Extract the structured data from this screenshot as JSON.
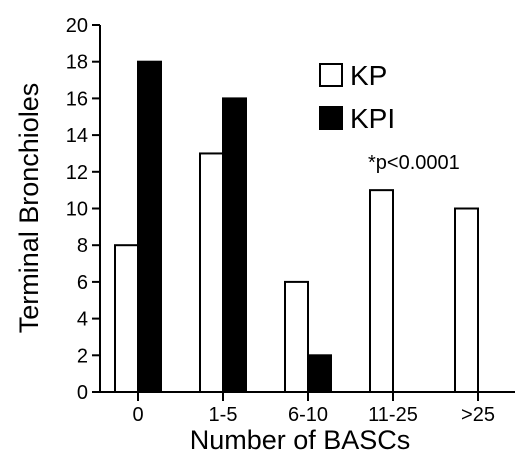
{
  "chart_data": {
    "type": "bar",
    "title": "",
    "xlabel": "Number of BASCs",
    "ylabel": "Terminal Bronchioles",
    "categories": [
      "0",
      "1-5",
      "6-10",
      "11-25",
      ">25"
    ],
    "series": [
      {
        "name": "KP",
        "values": [
          8,
          13,
          6,
          11,
          10
        ],
        "fill": "#ffffff",
        "stroke": "#000000"
      },
      {
        "name": "KPI",
        "values": [
          18,
          16,
          2,
          0,
          0
        ],
        "fill": "#000000",
        "stroke": "#000000"
      }
    ],
    "ylim": [
      0,
      20
    ],
    "yticks": [
      "0",
      "2",
      "4",
      "6",
      "8",
      "10",
      "12",
      "14",
      "16",
      "18",
      "20"
    ],
    "grid": false,
    "legend_position": "top-right",
    "annotation": "*p<0.0001"
  }
}
